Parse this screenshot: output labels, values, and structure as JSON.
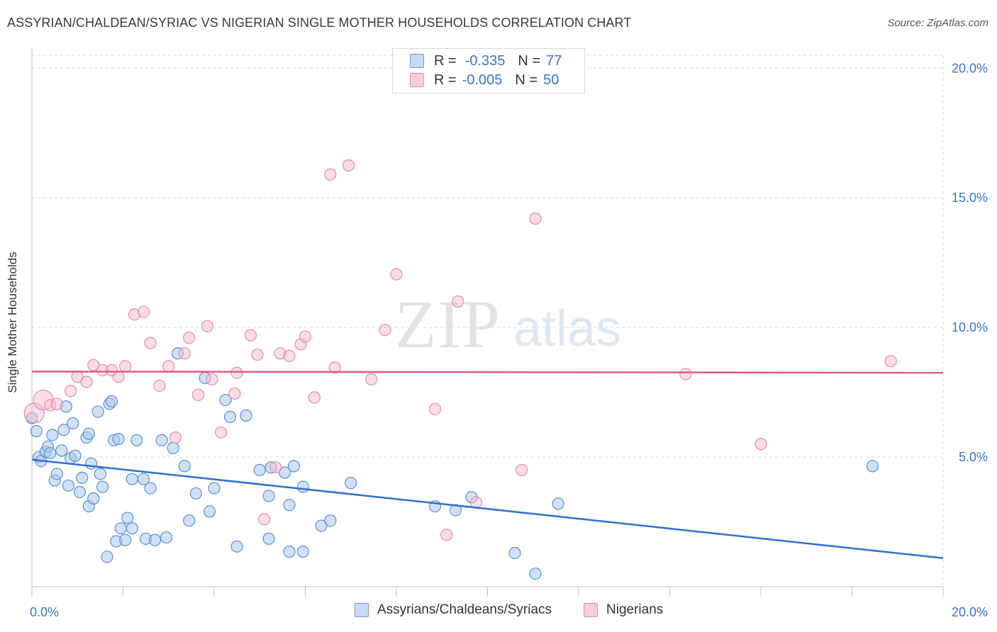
{
  "title": "ASSYRIAN/CHALDEAN/SYRIAC VS NIGERIAN SINGLE MOTHER HOUSEHOLDS CORRELATION CHART",
  "source": "Source: ZipAtlas.com",
  "watermark": {
    "zip": "ZIP",
    "atlas": "atlas"
  },
  "colors": {
    "blue_fill": "#a9c8f0",
    "blue_stroke": "#5b8fd6",
    "blue_line": "#2f6fd0",
    "pink_fill": "#f7bcd0",
    "pink_stroke": "#e68aa8",
    "pink_line": "#e05a86",
    "tick_label": "#3a74c8",
    "grid": "#d9d9d9"
  },
  "legend_top": [
    {
      "r_label": "R =",
      "r_value": "-0.335",
      "n_label": "N =",
      "n_value": "77"
    },
    {
      "r_label": "R =",
      "r_value": "-0.005",
      "n_label": "N =",
      "n_value": "50"
    }
  ],
  "legend_bottom": [
    "Assyrians/Chaldeans/Syriacs",
    "Nigerians"
  ],
  "chart_data": {
    "type": "scatter",
    "title": "ASSYRIAN/CHALDEAN/SYRIAC VS NIGERIAN SINGLE MOTHER HOUSEHOLDS CORRELATION CHART",
    "xlabel": "",
    "ylabel": "Single Mother Households",
    "xlim": [
      0,
      20
    ],
    "ylim": [
      0,
      20.5
    ],
    "x_tick_labels": [
      "0.0%",
      "20.0%"
    ],
    "y_tick_values": [
      5,
      10,
      15,
      20
    ],
    "y_tick_labels": [
      "5.0%",
      "10.0%",
      "15.0%",
      "20.0%"
    ],
    "grid": true,
    "legend_position": "top-center",
    "series": [
      {
        "name": "Assyrians/Chaldeans/Syriacs",
        "trend": {
          "x": [
            0,
            20
          ],
          "y": [
            4.9,
            1.1
          ]
        },
        "points": [
          [
            0.0,
            6.5
          ],
          [
            0.1,
            6.0
          ],
          [
            0.15,
            5.0
          ],
          [
            0.2,
            4.85
          ],
          [
            0.3,
            5.2
          ],
          [
            0.35,
            5.4
          ],
          [
            0.4,
            5.15
          ],
          [
            0.45,
            5.85
          ],
          [
            0.5,
            4.1
          ],
          [
            0.55,
            4.35
          ],
          [
            0.65,
            5.25
          ],
          [
            0.7,
            6.05
          ],
          [
            0.75,
            6.95
          ],
          [
            0.8,
            3.9
          ],
          [
            0.85,
            4.95
          ],
          [
            0.9,
            6.3
          ],
          [
            0.95,
            5.05
          ],
          [
            1.05,
            3.65
          ],
          [
            1.1,
            4.2
          ],
          [
            1.2,
            5.75
          ],
          [
            1.25,
            3.1
          ],
          [
            1.25,
            5.9
          ],
          [
            1.3,
            4.75
          ],
          [
            1.35,
            3.4
          ],
          [
            1.45,
            6.75
          ],
          [
            1.5,
            4.35
          ],
          [
            1.55,
            3.85
          ],
          [
            1.65,
            1.15
          ],
          [
            1.7,
            7.05
          ],
          [
            1.75,
            7.15
          ],
          [
            1.8,
            5.65
          ],
          [
            1.85,
            1.75
          ],
          [
            1.9,
            5.7
          ],
          [
            1.95,
            2.25
          ],
          [
            2.05,
            1.8
          ],
          [
            2.1,
            2.65
          ],
          [
            2.2,
            4.15
          ],
          [
            2.2,
            2.25
          ],
          [
            2.3,
            5.65
          ],
          [
            2.45,
            4.15
          ],
          [
            2.5,
            1.85
          ],
          [
            2.6,
            3.8
          ],
          [
            2.7,
            1.8
          ],
          [
            2.85,
            5.65
          ],
          [
            2.95,
            1.9
          ],
          [
            3.1,
            5.35
          ],
          [
            3.2,
            9.0
          ],
          [
            3.35,
            4.65
          ],
          [
            3.45,
            2.55
          ],
          [
            3.6,
            3.6
          ],
          [
            3.8,
            8.05
          ],
          [
            3.9,
            2.9
          ],
          [
            4.0,
            3.8
          ],
          [
            4.25,
            7.2
          ],
          [
            4.35,
            6.55
          ],
          [
            4.5,
            1.55
          ],
          [
            4.7,
            6.6
          ],
          [
            5.0,
            4.5
          ],
          [
            5.2,
            1.85
          ],
          [
            5.2,
            3.5
          ],
          [
            5.25,
            4.6
          ],
          [
            5.55,
            4.4
          ],
          [
            5.65,
            1.35
          ],
          [
            5.65,
            3.15
          ],
          [
            5.75,
            4.65
          ],
          [
            5.95,
            1.35
          ],
          [
            5.95,
            3.85
          ],
          [
            6.35,
            2.35
          ],
          [
            6.55,
            2.55
          ],
          [
            7.0,
            4.0
          ],
          [
            8.85,
            3.1
          ],
          [
            9.3,
            2.95
          ],
          [
            9.65,
            3.45
          ],
          [
            10.6,
            1.3
          ],
          [
            11.05,
            0.5
          ],
          [
            11.55,
            3.2
          ],
          [
            18.45,
            4.65
          ]
        ]
      },
      {
        "name": "Nigerians",
        "trend": {
          "x": [
            0,
            20
          ],
          "y": [
            8.3,
            8.25
          ]
        },
        "points": [
          [
            0.05,
            6.7
          ],
          [
            0.25,
            7.2
          ],
          [
            0.4,
            7.0
          ],
          [
            0.55,
            7.05
          ],
          [
            0.85,
            7.55
          ],
          [
            1.0,
            8.1
          ],
          [
            1.2,
            7.9
          ],
          [
            1.35,
            8.55
          ],
          [
            1.55,
            8.35
          ],
          [
            1.75,
            8.35
          ],
          [
            1.9,
            8.1
          ],
          [
            2.05,
            8.5
          ],
          [
            2.25,
            10.5
          ],
          [
            2.45,
            10.6
          ],
          [
            2.6,
            9.4
          ],
          [
            2.8,
            7.75
          ],
          [
            3.0,
            8.5
          ],
          [
            3.15,
            5.75
          ],
          [
            3.35,
            9.0
          ],
          [
            3.45,
            9.6
          ],
          [
            3.65,
            7.4
          ],
          [
            3.85,
            10.05
          ],
          [
            3.95,
            8.0
          ],
          [
            4.15,
            5.95
          ],
          [
            4.45,
            7.45
          ],
          [
            4.5,
            8.25
          ],
          [
            4.8,
            9.7
          ],
          [
            4.95,
            8.95
          ],
          [
            5.1,
            2.6
          ],
          [
            5.35,
            4.6
          ],
          [
            5.45,
            9.0
          ],
          [
            5.65,
            8.9
          ],
          [
            5.9,
            9.35
          ],
          [
            6.0,
            9.65
          ],
          [
            6.2,
            7.3
          ],
          [
            6.55,
            15.9
          ],
          [
            6.65,
            8.45
          ],
          [
            6.95,
            16.25
          ],
          [
            7.45,
            8.0
          ],
          [
            7.75,
            9.9
          ],
          [
            8.0,
            12.05
          ],
          [
            8.85,
            6.85
          ],
          [
            9.1,
            2.0
          ],
          [
            9.35,
            11.0
          ],
          [
            9.75,
            3.25
          ],
          [
            10.75,
            4.5
          ],
          [
            11.05,
            14.2
          ],
          [
            14.35,
            8.2
          ],
          [
            16.0,
            5.5
          ],
          [
            18.85,
            8.7
          ]
        ]
      }
    ]
  }
}
